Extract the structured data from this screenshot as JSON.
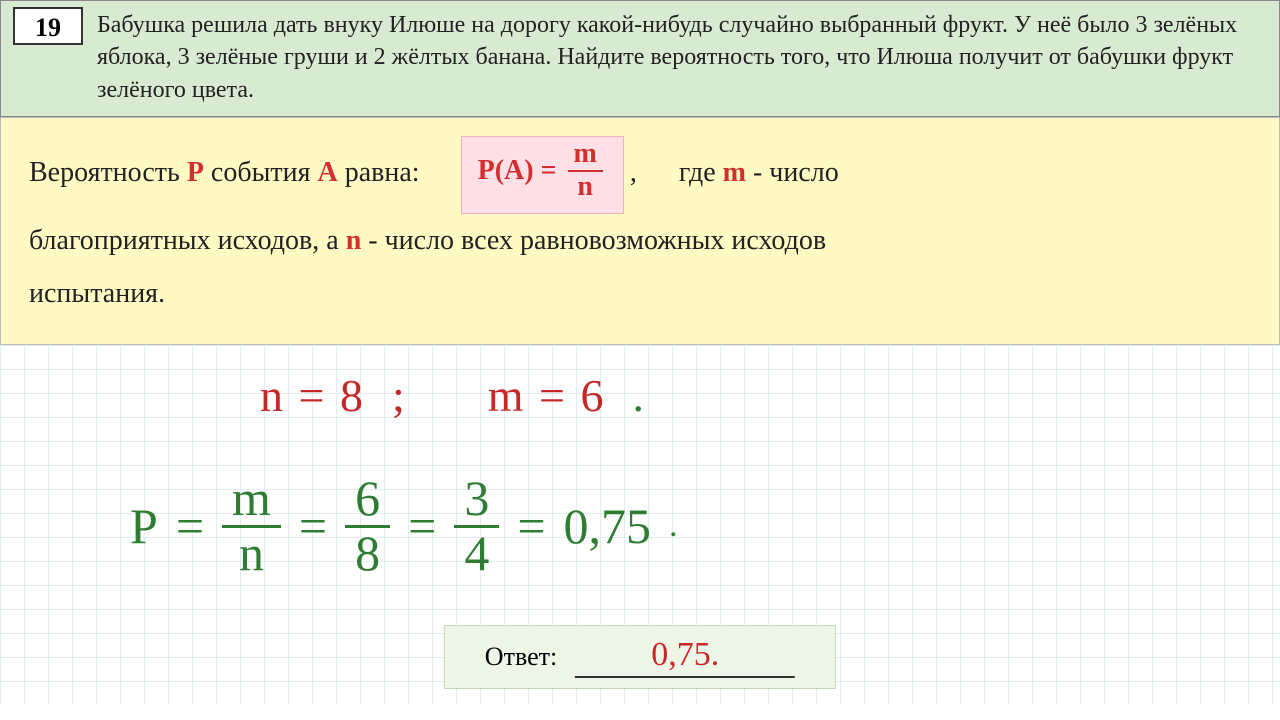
{
  "problem": {
    "number": "19",
    "text": "Бабушка решила дать внуку Илюше на дорогу какой-нибудь случайно выбранный фрукт. У неё было 3 зелёных яблока, 3 зелёные груши и 2 жёлтых банана. Найдите вероятность того, что Илюша получит от бабушки фрукт зелёного цвета."
  },
  "theory": {
    "line1_pre": "Вероятность ",
    "P": "Р",
    "line1_mid": " события ",
    "A": "А",
    "line1_post": " равна:",
    "formula_lhs": "P(A) = ",
    "m": "m",
    "n": "n",
    "where": ",      где ",
    "m2": "m",
    "m_desc": " - число",
    "line2_pre": "благоприятных исходов, а ",
    "n2": "n",
    "line2_post": " - число всех равновозможных исходов",
    "line3": "испытания."
  },
  "work": {
    "n_expr": "n = 8",
    "sep": ";",
    "m_expr": "m = 6",
    "dot": ".",
    "P": "P",
    "eq": "=",
    "f1_num": "m",
    "f1_den": "n",
    "f2_num": "6",
    "f2_den": "8",
    "f3_num": "3",
    "f3_den": "4",
    "result": "0,75",
    "trail": "."
  },
  "answer": {
    "label": "Ответ:",
    "value": "0,75."
  },
  "colors": {
    "header_bg": "#d9ead3",
    "theory_bg": "#fff9c4",
    "formula_bg": "#ffe0e6",
    "answer_bg": "#eef6e8",
    "grid": "#e3ecf5",
    "red": "#c62828",
    "green": "#2e7d32",
    "text": "#222222"
  }
}
